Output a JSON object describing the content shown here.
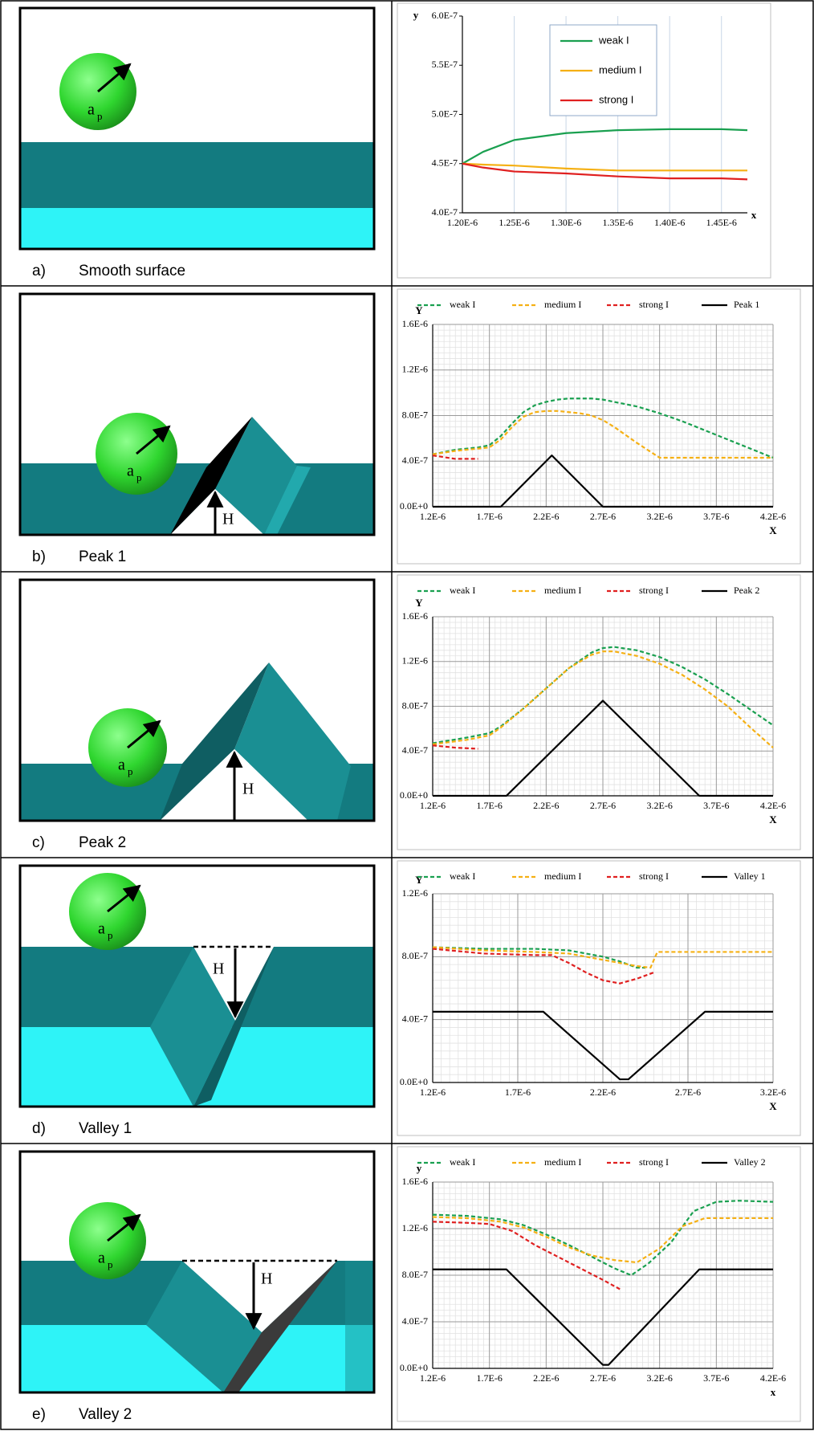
{
  "chart_data": [
    {
      "type": "line",
      "y_label": "y",
      "x_label": "x",
      "xlim": [
        1.2e-06,
        1.475e-06
      ],
      "xticks": [
        {
          "value": 1.2e-06,
          "label": "1.20E-6"
        },
        {
          "value": 1.25e-06,
          "label": "1.25E-6"
        },
        {
          "value": 1.3e-06,
          "label": "1.30E-6"
        },
        {
          "value": 1.35e-06,
          "label": "1.35E-6"
        },
        {
          "value": 1.4e-06,
          "label": "1.40E-6"
        },
        {
          "value": 1.45e-06,
          "label": "1.45E-6"
        }
      ],
      "ylim": [
        4e-07,
        6e-07
      ],
      "yticks": [
        {
          "value": 4e-07,
          "label": "4.0E-7"
        },
        {
          "value": 4.5e-07,
          "label": "4.5E-7"
        },
        {
          "value": 5e-07,
          "label": "5.0E-7"
        },
        {
          "value": 5.5e-07,
          "label": "5.5E-7"
        },
        {
          "value": 6e-07,
          "label": "6.0E-7"
        }
      ],
      "grid": "x",
      "legend": "top-inside",
      "series": [
        {
          "name": "weak I",
          "color": "#1aa050",
          "style": "solid",
          "x": [
            1.2e-06,
            1.22e-06,
            1.25e-06,
            1.3e-06,
            1.35e-06,
            1.4e-06,
            1.45e-06,
            1.475e-06
          ],
          "values": [
            4.5e-07,
            4.62e-07,
            4.74e-07,
            4.81e-07,
            4.84e-07,
            4.85e-07,
            4.85e-07,
            4.84e-07
          ]
        },
        {
          "name": "medium I",
          "color": "#f5b014",
          "style": "solid",
          "x": [
            1.2e-06,
            1.22e-06,
            1.25e-06,
            1.3e-06,
            1.35e-06,
            1.4e-06,
            1.45e-06,
            1.475e-06
          ],
          "values": [
            4.5e-07,
            4.49e-07,
            4.48e-07,
            4.45e-07,
            4.43e-07,
            4.43e-07,
            4.43e-07,
            4.43e-07
          ]
        },
        {
          "name": "strong I",
          "color": "#e02020",
          "style": "solid",
          "x": [
            1.2e-06,
            1.22e-06,
            1.25e-06,
            1.3e-06,
            1.35e-06,
            1.4e-06,
            1.45e-06,
            1.475e-06
          ],
          "values": [
            4.5e-07,
            4.46e-07,
            4.42e-07,
            4.4e-07,
            4.37e-07,
            4.35e-07,
            4.35e-07,
            4.34e-07
          ]
        }
      ]
    },
    {
      "type": "line",
      "y_label": "Y",
      "x_label": "X",
      "xlim": [
        1.2e-06,
        4.2e-06
      ],
      "xticks": [
        {
          "value": 1.2e-06,
          "label": "1.2E-6"
        },
        {
          "value": 1.7e-06,
          "label": "1.7E-6"
        },
        {
          "value": 2.2e-06,
          "label": "2.2E-6"
        },
        {
          "value": 2.7e-06,
          "label": "2.7E-6"
        },
        {
          "value": 3.2e-06,
          "label": "3.2E-6"
        },
        {
          "value": 3.7e-06,
          "label": "3.7E-6"
        },
        {
          "value": 4.2e-06,
          "label": "4.2E-6"
        }
      ],
      "ylim": [
        0,
        1.6e-06
      ],
      "yticks": [
        {
          "value": 0,
          "label": "0.0E+0"
        },
        {
          "value": 4e-07,
          "label": "4.0E-7"
        },
        {
          "value": 8e-07,
          "label": "8.0E-7"
        },
        {
          "value": 1.2e-06,
          "label": "1.2E-6"
        },
        {
          "value": 1.6e-06,
          "label": "1.6E-6"
        }
      ],
      "grid": "both",
      "legend": "top-outside",
      "series": [
        {
          "name": "weak I",
          "color": "#1aa050",
          "style": "dashed",
          "x": [
            1.2e-06,
            1.4e-06,
            1.6e-06,
            1.7e-06,
            1.8e-06,
            1.9e-06,
            2e-06,
            2.1e-06,
            2.2e-06,
            2.3e-06,
            2.4e-06,
            2.5e-06,
            2.6e-06,
            2.7e-06,
            2.8e-06,
            3e-06,
            3.2e-06,
            3.4e-06,
            3.6e-06,
            3.8e-06,
            4e-06,
            4.2e-06
          ],
          "values": [
            4.6e-07,
            5e-07,
            5.2e-07,
            5.4e-07,
            6.2e-07,
            7.3e-07,
            8.3e-07,
            8.9e-07,
            9.2e-07,
            9.4e-07,
            9.5e-07,
            9.5e-07,
            9.5e-07,
            9.4e-07,
            9.2e-07,
            8.8e-07,
            8.2e-07,
            7.5e-07,
            6.7e-07,
            5.9e-07,
            5.1e-07,
            4.3e-07
          ]
        },
        {
          "name": "medium I",
          "color": "#f5b014",
          "style": "dashed",
          "x": [
            1.2e-06,
            1.4e-06,
            1.6e-06,
            1.7e-06,
            1.8e-06,
            1.9e-06,
            2e-06,
            2.1e-06,
            2.2e-06,
            2.3e-06,
            2.4e-06,
            2.5e-06,
            2.6e-06,
            2.7e-06,
            2.8e-06,
            3e-06,
            3.2e-06,
            3.4e-06,
            3.6e-06,
            3.8e-06,
            4e-06,
            4.2e-06
          ],
          "values": [
            4.6e-07,
            4.9e-07,
            5.1e-07,
            5.2e-07,
            5.9e-07,
            7e-07,
            7.9e-07,
            8.3e-07,
            8.4e-07,
            8.4e-07,
            8.3e-07,
            8.2e-07,
            8e-07,
            7.6e-07,
            7e-07,
            5.6e-07,
            4.3e-07,
            4.3e-07,
            4.3e-07,
            4.3e-07,
            4.3e-07,
            4.3e-07
          ]
        },
        {
          "name": "strong I",
          "color": "#e02020",
          "style": "dashed",
          "x": [
            1.2e-06,
            1.4e-06,
            1.6e-06
          ],
          "values": [
            4.5e-07,
            4.2e-07,
            4.2e-07
          ]
        },
        {
          "name": "Peak 1",
          "color": "#000000",
          "style": "solid",
          "x": [
            1.2e-06,
            1.8e-06,
            2.25e-06,
            2.7e-06,
            4.2e-06
          ],
          "values": [
            0,
            0,
            4.5e-07,
            0,
            0
          ]
        }
      ]
    },
    {
      "type": "line",
      "y_label": "Y",
      "x_label": "X",
      "xlim": [
        1.2e-06,
        4.2e-06
      ],
      "xticks": [
        {
          "value": 1.2e-06,
          "label": "1.2E-6"
        },
        {
          "value": 1.7e-06,
          "label": "1.7E-6"
        },
        {
          "value": 2.2e-06,
          "label": "2.2E-6"
        },
        {
          "value": 2.7e-06,
          "label": "2.7E-6"
        },
        {
          "value": 3.2e-06,
          "label": "3.2E-6"
        },
        {
          "value": 3.7e-06,
          "label": "3.7E-6"
        },
        {
          "value": 4.2e-06,
          "label": "4.2E-6"
        }
      ],
      "ylim": [
        0,
        1.6e-06
      ],
      "yticks": [
        {
          "value": 0,
          "label": "0.0E+0"
        },
        {
          "value": 4e-07,
          "label": "4.0E-7"
        },
        {
          "value": 8e-07,
          "label": "8.0E-7"
        },
        {
          "value": 1.2e-06,
          "label": "1.2E-6"
        },
        {
          "value": 1.6e-06,
          "label": "1.6E-6"
        }
      ],
      "grid": "both",
      "legend": "top-outside",
      "series": [
        {
          "name": "weak I",
          "color": "#1aa050",
          "style": "dashed",
          "x": [
            1.2e-06,
            1.5e-06,
            1.7e-06,
            1.8e-06,
            2e-06,
            2.2e-06,
            2.4e-06,
            2.6e-06,
            2.7e-06,
            2.8e-06,
            3e-06,
            3.2e-06,
            3.4e-06,
            3.6e-06,
            3.8e-06,
            4e-06,
            4.2e-06
          ],
          "values": [
            4.7e-07,
            5.2e-07,
            5.6e-07,
            6.2e-07,
            7.8e-07,
            9.6e-07,
            1.14e-06,
            1.28e-06,
            1.32e-06,
            1.33e-06,
            1.3e-06,
            1.24e-06,
            1.15e-06,
            1.04e-06,
            9.1e-07,
            7.7e-07,
            6.3e-07
          ]
        },
        {
          "name": "medium I",
          "color": "#f5b014",
          "style": "dashed",
          "x": [
            1.2e-06,
            1.5e-06,
            1.7e-06,
            1.8e-06,
            2e-06,
            2.2e-06,
            2.4e-06,
            2.6e-06,
            2.7e-06,
            2.8e-06,
            3e-06,
            3.2e-06,
            3.4e-06,
            3.6e-06,
            3.8e-06,
            4e-06,
            4.2e-06
          ],
          "values": [
            4.6e-07,
            5e-07,
            5.4e-07,
            6.1e-07,
            7.8e-07,
            9.6e-07,
            1.14e-06,
            1.26e-06,
            1.29e-06,
            1.29e-06,
            1.25e-06,
            1.18e-06,
            1.08e-06,
            9.5e-07,
            8e-07,
            6.1e-07,
            4.3e-07
          ]
        },
        {
          "name": "strong I",
          "color": "#e02020",
          "style": "dashed",
          "x": [
            1.2e-06,
            1.4e-06,
            1.6e-06
          ],
          "values": [
            4.5e-07,
            4.3e-07,
            4.2e-07
          ]
        },
        {
          "name": "Peak 2",
          "color": "#000000",
          "style": "solid",
          "x": [
            1.2e-06,
            1.85e-06,
            2.7e-06,
            3.55e-06,
            4.2e-06
          ],
          "values": [
            0,
            0,
            8.5e-07,
            0,
            0
          ]
        }
      ]
    },
    {
      "type": "line",
      "y_label": "Y",
      "x_label": "X",
      "xlim": [
        1.2e-06,
        3.2e-06
      ],
      "xticks": [
        {
          "value": 1.2e-06,
          "label": "1.2E-6"
        },
        {
          "value": 1.7e-06,
          "label": "1.7E-6"
        },
        {
          "value": 2.2e-06,
          "label": "2.2E-6"
        },
        {
          "value": 2.7e-06,
          "label": "2.7E-6"
        },
        {
          "value": 3.2e-06,
          "label": "3.2E-6"
        }
      ],
      "ylim": [
        0,
        1.2e-06
      ],
      "yticks": [
        {
          "value": 0,
          "label": "0.0E+0"
        },
        {
          "value": 4e-07,
          "label": "4.0E-7"
        },
        {
          "value": 8e-07,
          "label": "8.0E-7"
        },
        {
          "value": 1.2e-06,
          "label": "1.2E-6"
        }
      ],
      "grid": "both",
      "legend": "top-outside",
      "series": [
        {
          "name": "weak I",
          "color": "#1aa050",
          "style": "dashed",
          "x": [
            1.2e-06,
            1.5e-06,
            1.8e-06,
            2e-06,
            2.2e-06,
            2.3e-06,
            2.4e-06,
            2.45e-06
          ],
          "values": [
            8.6e-07,
            8.5e-07,
            8.5e-07,
            8.4e-07,
            8e-07,
            7.7e-07,
            7.3e-07,
            7.3e-07
          ]
        },
        {
          "name": "medium I",
          "color": "#f5b014",
          "style": "dashed",
          "x": [
            1.2e-06,
            1.5e-06,
            1.8e-06,
            2e-06,
            2.2e-06,
            2.3e-06,
            2.4e-06,
            2.48e-06,
            2.52e-06,
            2.6e-06,
            2.8e-06,
            3e-06,
            3.2e-06
          ],
          "values": [
            8.6e-07,
            8.4e-07,
            8.3e-07,
            8.2e-07,
            7.8e-07,
            7.6e-07,
            7.4e-07,
            7.3e-07,
            8.3e-07,
            8.3e-07,
            8.3e-07,
            8.3e-07,
            8.3e-07
          ]
        },
        {
          "name": "strong I",
          "color": "#e02020",
          "style": "dashed",
          "x": [
            1.2e-06,
            1.5e-06,
            1.8e-06,
            1.9e-06,
            2e-06,
            2.1e-06,
            2.2e-06,
            2.3e-06,
            2.4e-06,
            2.5e-06
          ],
          "values": [
            8.5e-07,
            8.2e-07,
            8.1e-07,
            8.1e-07,
            7.6e-07,
            7e-07,
            6.5e-07,
            6.3e-07,
            6.6e-07,
            7e-07
          ]
        },
        {
          "name": "Valley 1",
          "color": "#000000",
          "style": "solid",
          "x": [
            1.2e-06,
            1.85e-06,
            2.3e-06,
            2.35e-06,
            2.8e-06,
            3.2e-06
          ],
          "values": [
            4.5e-07,
            4.5e-07,
            2e-08,
            2e-08,
            4.5e-07,
            4.5e-07
          ]
        }
      ]
    },
    {
      "type": "line",
      "y_label": "y",
      "x_label": "x",
      "xlim": [
        1.2e-06,
        4.2e-06
      ],
      "xticks": [
        {
          "value": 1.2e-06,
          "label": "1.2E-6"
        },
        {
          "value": 1.7e-06,
          "label": "1.7E-6"
        },
        {
          "value": 2.2e-06,
          "label": "2.2E-6"
        },
        {
          "value": 2.7e-06,
          "label": "2.7E-6"
        },
        {
          "value": 3.2e-06,
          "label": "3.2E-6"
        },
        {
          "value": 3.7e-06,
          "label": "3.7E-6"
        },
        {
          "value": 4.2e-06,
          "label": "4.2E-6"
        }
      ],
      "ylim": [
        0,
        1.6e-06
      ],
      "yticks": [
        {
          "value": 0,
          "label": "0.0E+0"
        },
        {
          "value": 4e-07,
          "label": "4.0E-7"
        },
        {
          "value": 8e-07,
          "label": "8.0E-7"
        },
        {
          "value": 1.2e-06,
          "label": "1.2E-6"
        },
        {
          "value": 1.6e-06,
          "label": "1.6E-6"
        }
      ],
      "grid": "both",
      "legend": "top-outside",
      "series": [
        {
          "name": "weak I",
          "color": "#1aa050",
          "style": "dashed",
          "x": [
            1.2e-06,
            1.5e-06,
            1.8e-06,
            2e-06,
            2.2e-06,
            2.4e-06,
            2.6e-06,
            2.8e-06,
            2.95e-06,
            3.1e-06,
            3.3e-06,
            3.5e-06,
            3.7e-06,
            3.9e-06,
            4.2e-06
          ],
          "values": [
            1.32e-06,
            1.31e-06,
            1.28e-06,
            1.23e-06,
            1.15e-06,
            1.06e-06,
            9.6e-07,
            8.6e-07,
            8e-07,
            9e-07,
            1.08e-06,
            1.35e-06,
            1.43e-06,
            1.44e-06,
            1.43e-06
          ]
        },
        {
          "name": "medium I",
          "color": "#f5b014",
          "style": "dashed",
          "x": [
            1.2e-06,
            1.5e-06,
            1.8e-06,
            2e-06,
            2.2e-06,
            2.4e-06,
            2.6e-06,
            2.8e-06,
            3e-06,
            3.2e-06,
            3.4e-06,
            3.6e-06,
            4.2e-06
          ],
          "values": [
            1.3e-06,
            1.29e-06,
            1.26e-06,
            1.21e-06,
            1.13e-06,
            1.04e-06,
            9.7e-07,
            9.3e-07,
            9.1e-07,
            1.03e-06,
            1.22e-06,
            1.29e-06,
            1.29e-06
          ]
        },
        {
          "name": "strong I",
          "color": "#e02020",
          "style": "dashed",
          "x": [
            1.2e-06,
            1.5e-06,
            1.7e-06,
            1.9e-06,
            2.1e-06,
            2.3e-06,
            2.5e-06,
            2.7e-06,
            2.85e-06
          ],
          "values": [
            1.26e-06,
            1.25e-06,
            1.24e-06,
            1.18e-06,
            1.06e-06,
            9.6e-07,
            8.6e-07,
            7.6e-07,
            6.8e-07
          ]
        },
        {
          "name": "Valley 2",
          "color": "#000000",
          "style": "solid",
          "x": [
            1.2e-06,
            1.85e-06,
            2.7e-06,
            2.75e-06,
            3.55e-06,
            4.2e-06
          ],
          "values": [
            8.5e-07,
            8.5e-07,
            3e-08,
            3e-08,
            8.5e-07,
            8.5e-07
          ]
        }
      ]
    }
  ],
  "captions": [
    {
      "label": "a)",
      "text": "Smooth surface"
    },
    {
      "label": "b)",
      "text": "Peak 1"
    },
    {
      "label": "c)",
      "text": "Peak 2"
    },
    {
      "label": "d)",
      "text": "Valley 1"
    },
    {
      "label": "e)",
      "text": "Valley 2"
    }
  ],
  "diagrams": [
    {
      "radius_label": "a",
      "radius_subscript": "p"
    },
    {
      "radius_label": "a",
      "radius_subscript": "p",
      "height_label": "H"
    },
    {
      "radius_label": "a",
      "radius_subscript": "p",
      "height_label": "H"
    },
    {
      "radius_label": "a",
      "radius_subscript": "p",
      "height_label": "H"
    },
    {
      "radius_label": "a",
      "radius_subscript": "p",
      "height_label": "H"
    }
  ]
}
